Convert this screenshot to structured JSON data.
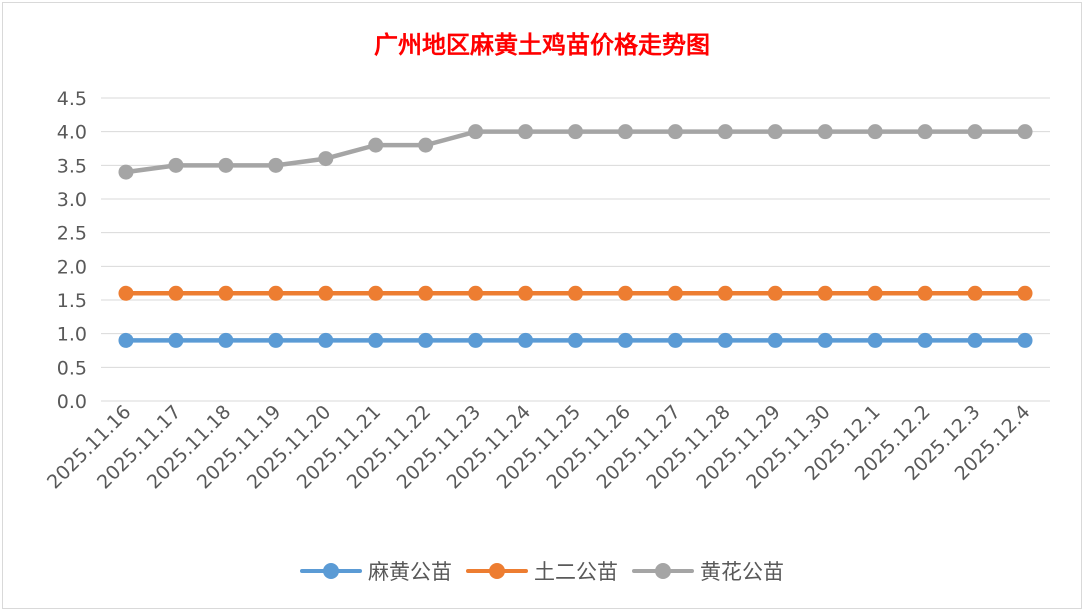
{
  "chart_data": {
    "type": "line",
    "title": "广州地区麻黄土鸡苗价格走势图",
    "xlabel": "",
    "ylabel": "",
    "ylim": [
      0,
      4.5
    ],
    "ytick_step": 0.5,
    "ytick_labels": [
      "0.0",
      "0.5",
      "1.0",
      "1.5",
      "2.0",
      "2.5",
      "3.0",
      "3.5",
      "4.0",
      "4.5"
    ],
    "grid": true,
    "legend_position": "bottom",
    "categories": [
      "2025.11.16",
      "2025.11.17",
      "2025.11.18",
      "2025.11.19",
      "2025.11.20",
      "2025.11.21",
      "2025.11.22",
      "2025.11.23",
      "2025.11.24",
      "2025.11.25",
      "2025.11.26",
      "2025.11.27",
      "2025.11.28",
      "2025.11.29",
      "2025.11.30",
      "2025.12.1",
      "2025.12.2",
      "2025.12.3",
      "2025.12.4"
    ],
    "series": [
      {
        "name": "麻黄公苗",
        "color": "#5b9bd5",
        "values": [
          0.9,
          0.9,
          0.9,
          0.9,
          0.9,
          0.9,
          0.9,
          0.9,
          0.9,
          0.9,
          0.9,
          0.9,
          0.9,
          0.9,
          0.9,
          0.9,
          0.9,
          0.9,
          0.9
        ]
      },
      {
        "name": "土二公苗",
        "color": "#ed7d31",
        "values": [
          1.6,
          1.6,
          1.6,
          1.6,
          1.6,
          1.6,
          1.6,
          1.6,
          1.6,
          1.6,
          1.6,
          1.6,
          1.6,
          1.6,
          1.6,
          1.6,
          1.6,
          1.6,
          1.6
        ]
      },
      {
        "name": "黄花公苗",
        "color": "#a5a5a5",
        "values": [
          3.4,
          3.5,
          3.5,
          3.5,
          3.6,
          3.8,
          3.8,
          4.0,
          4.0,
          4.0,
          4.0,
          4.0,
          4.0,
          4.0,
          4.0,
          4.0,
          4.0,
          4.0,
          4.0
        ]
      }
    ]
  }
}
